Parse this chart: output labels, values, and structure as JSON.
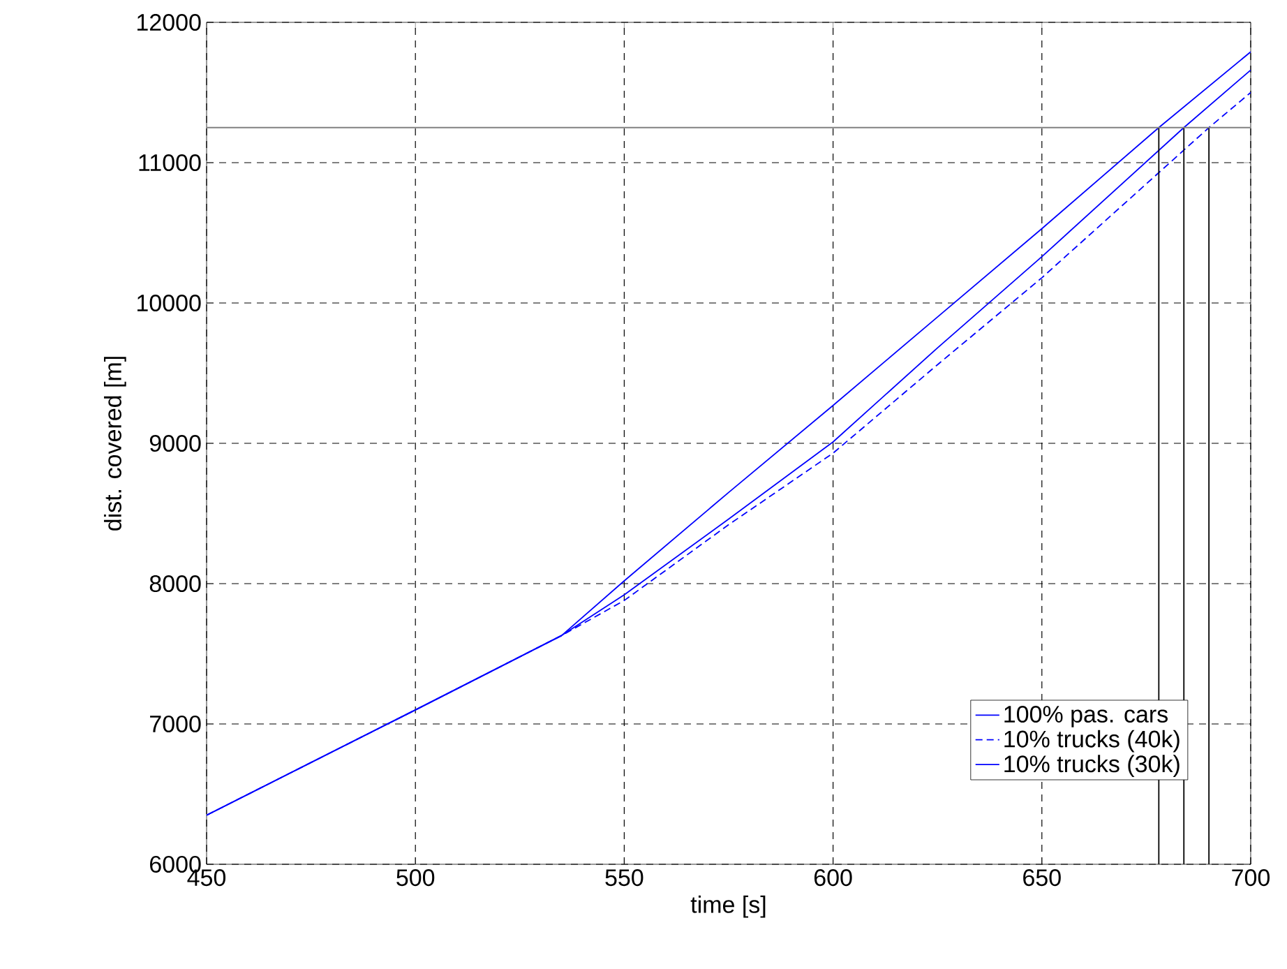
{
  "chart_data": {
    "type": "line",
    "xlabel": "time [s]",
    "ylabel": "dist. covered [m]",
    "xlim": [
      450,
      700
    ],
    "ylim": [
      6000,
      12000
    ],
    "xticks": [
      450,
      500,
      550,
      600,
      650,
      700
    ],
    "yticks": [
      6000,
      7000,
      8000,
      9000,
      10000,
      11000,
      12000
    ],
    "grid": true,
    "legend": "bottom right",
    "series": [
      {
        "name": "100% pas. cars",
        "color": "#0000ff",
        "line_style": "solid",
        "x": [
          450,
          500,
          535,
          550,
          575,
          600,
          625,
          650,
          678,
          700
        ],
        "values": [
          6350,
          7100,
          7630,
          8020,
          8650,
          9270,
          9900,
          10530,
          11250,
          11790
        ]
      },
      {
        "name": "10% trucks (40k)",
        "color": "#0000ff",
        "line_style": "dashed",
        "x": [
          450,
          500,
          535,
          550,
          575,
          600,
          625,
          650,
          690,
          700
        ],
        "values": [
          6350,
          7100,
          7630,
          7880,
          8420,
          8930,
          9560,
          10180,
          11250,
          11500
        ]
      },
      {
        "name": "10% trucks (30k)",
        "color": "#0000ff",
        "line_style": "solid",
        "x": [
          450,
          500,
          535,
          550,
          575,
          600,
          625,
          650,
          684,
          700
        ],
        "values": [
          6350,
          7100,
          7630,
          7920,
          8460,
          9010,
          9680,
          10330,
          11250,
          11660
        ]
      },
      {
        "color": "#000000",
        "line_style": "solid",
        "x": [
          678,
          678
        ],
        "values": [
          6000,
          11250
        ]
      },
      {
        "color": "#000000",
        "line_style": "solid",
        "x": [
          684,
          684
        ],
        "values": [
          6000,
          11250
        ]
      },
      {
        "color": "#000000",
        "line_style": "solid",
        "x": [
          690,
          690
        ],
        "values": [
          6000,
          11250
        ]
      }
    ],
    "ref_lines": [
      {
        "axis": "y",
        "value": 11250,
        "color": "#808080"
      }
    ]
  }
}
